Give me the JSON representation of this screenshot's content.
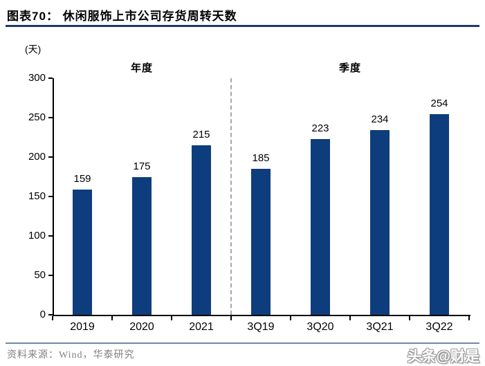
{
  "header": {
    "title": "图表70： 休闲服饰上市公司存货周转天数"
  },
  "chart_data": {
    "type": "bar",
    "title": "休闲服饰上市公司存货周转天数",
    "unit_label": "(天)",
    "categories": [
      "2019",
      "2020",
      "2021",
      "3Q19",
      "3Q20",
      "3Q21",
      "3Q22"
    ],
    "values": [
      159,
      175,
      215,
      185,
      223,
      234,
      254
    ],
    "value_labels_shown": true,
    "groups": [
      {
        "label": "年度",
        "count": 3
      },
      {
        "label": "季度",
        "count": 4
      }
    ],
    "xlabel": "",
    "ylabel": "(天)",
    "ylim": [
      0,
      300
    ],
    "ytick_step": 50,
    "grid": false,
    "legend": "none",
    "bar_color": "#0E3D7D"
  },
  "footer": {
    "source": "资料来源：Wind，华泰研究",
    "watermark": "头条@财是"
  },
  "colors": {
    "title_rule": "#1F3864",
    "footer_rule": "#7088A8",
    "axis": "#000000",
    "separator": "#A6A6A6",
    "source_text": "#808080",
    "bar": "#0E3D7D"
  }
}
